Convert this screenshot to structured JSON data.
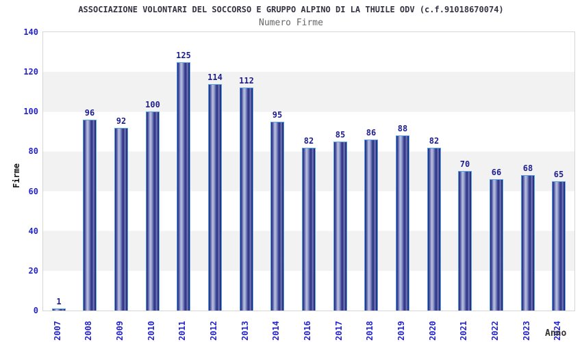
{
  "chart_data": {
    "type": "bar",
    "title": "ASSOCIAZIONE VOLONTARI DEL SOCCORSO E GRUPPO ALPINO DI LA THUILE ODV (c.f.91018670074)",
    "subtitle": "Numero Firme",
    "xlabel": "Anno",
    "ylabel": "Firme",
    "categories": [
      "2007",
      "2008",
      "2009",
      "2010",
      "2011",
      "2012",
      "2013",
      "2014",
      "2016",
      "2017",
      "2018",
      "2019",
      "2020",
      "2021",
      "2022",
      "2023",
      "2024"
    ],
    "values": [
      1,
      96,
      92,
      100,
      125,
      114,
      112,
      95,
      82,
      85,
      86,
      88,
      82,
      70,
      66,
      68,
      65
    ],
    "ylim": [
      0,
      140
    ],
    "yticks": [
      0,
      20,
      40,
      60,
      80,
      100,
      120,
      140
    ],
    "grid": "horizontal-alternating-bands",
    "legend": "none",
    "bar_labels_shown": true,
    "xtick_rotation": "vertical-bottom-up",
    "colors": {
      "title_text": "#333344",
      "subtitle_text": "#666666",
      "axis_tick_text": "#2424cc",
      "value_label_text": "#1d1d8f",
      "y_axis_title_text": "#111111",
      "x_axis_title_text": "#333333",
      "bar_dark": "#1f2376",
      "bar_mid": "#555fa8",
      "bar_highlight": "#bcc2e0",
      "bar_border": "#55a2e8",
      "plot_band_gray": "#f2f2f2",
      "plot_band_white": "#ffffff",
      "plot_border": "#d5d5d5",
      "background": "#ffffff"
    }
  }
}
